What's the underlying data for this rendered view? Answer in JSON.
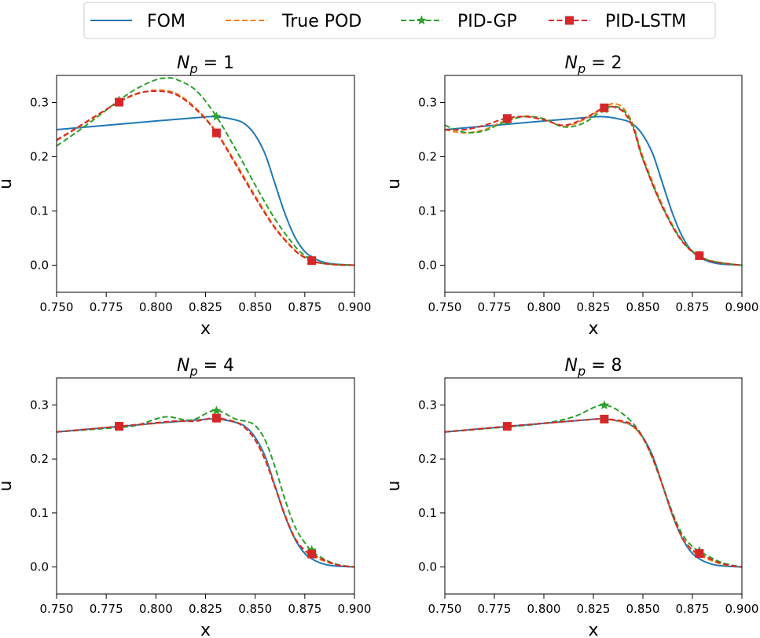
{
  "legend": {
    "placement": "top-center",
    "entries": [
      {
        "label": "FOM",
        "color": "#1f77b4",
        "style": "solid",
        "marker": ""
      },
      {
        "label": "True POD",
        "color": "#ff7f0e",
        "style": "dashed",
        "marker": ""
      },
      {
        "label": "PID-GP",
        "color": "#2ca02c",
        "style": "dashed",
        "marker": "star"
      },
      {
        "label": "PID-LSTM",
        "color": "#d62728",
        "style": "dashed",
        "marker": "square"
      }
    ]
  },
  "chart_data": [
    {
      "type": "line",
      "title_var": "N",
      "title_sub": "p",
      "title_rest": " = 1",
      "xlabel": "x",
      "ylabel": "u",
      "xlim": [
        0.75,
        0.9
      ],
      "ylim": [
        -0.05,
        0.35
      ],
      "xticks": [
        "0.750",
        "0.775",
        "0.800",
        "0.825",
        "0.850",
        "0.875",
        "0.900"
      ],
      "yticks": [
        "0.0",
        "0.1",
        "0.2",
        "0.3"
      ],
      "markers_x": [
        0.7815,
        0.8305,
        0.8785
      ],
      "series": [
        {
          "name": "FOM",
          "color": "#1f77b4",
          "x": [
            0.75,
            0.775,
            0.8,
            0.82,
            0.83,
            0.84,
            0.845,
            0.85,
            0.855,
            0.86,
            0.865,
            0.87,
            0.875,
            0.88,
            0.885,
            0.89,
            0.9
          ],
          "y": [
            0.25,
            0.258,
            0.266,
            0.272,
            0.274,
            0.268,
            0.26,
            0.24,
            0.205,
            0.15,
            0.095,
            0.052,
            0.025,
            0.012,
            0.005,
            0.002,
            0.0
          ]
        },
        {
          "name": "True POD",
          "color": "#ff7f0e",
          "x": [
            0.75,
            0.76,
            0.77,
            0.78,
            0.79,
            0.8,
            0.81,
            0.82,
            0.83,
            0.84,
            0.85,
            0.86,
            0.87,
            0.875,
            0.88,
            0.89,
            0.9
          ],
          "y": [
            0.23,
            0.252,
            0.275,
            0.298,
            0.315,
            0.323,
            0.317,
            0.29,
            0.248,
            0.19,
            0.128,
            0.07,
            0.028,
            0.015,
            0.006,
            0.001,
            0.0
          ]
        },
        {
          "name": "PID-GP",
          "color": "#2ca02c",
          "x": [
            0.75,
            0.76,
            0.77,
            0.78,
            0.79,
            0.8,
            0.805,
            0.81,
            0.82,
            0.83,
            0.84,
            0.85,
            0.86,
            0.87,
            0.875,
            0.88,
            0.89,
            0.9
          ],
          "y": [
            0.22,
            0.245,
            0.272,
            0.3,
            0.325,
            0.342,
            0.345,
            0.343,
            0.323,
            0.277,
            0.215,
            0.148,
            0.085,
            0.035,
            0.018,
            0.006,
            0.001,
            0.0
          ]
        },
        {
          "name": "PID-LSTM",
          "color": "#d62728",
          "x": [
            0.75,
            0.76,
            0.77,
            0.78,
            0.79,
            0.8,
            0.81,
            0.82,
            0.83,
            0.84,
            0.85,
            0.86,
            0.87,
            0.875,
            0.88,
            0.89,
            0.9
          ],
          "y": [
            0.231,
            0.253,
            0.276,
            0.298,
            0.316,
            0.321,
            0.315,
            0.288,
            0.247,
            0.187,
            0.125,
            0.068,
            0.027,
            0.014,
            0.006,
            0.001,
            0.0
          ]
        }
      ]
    },
    {
      "type": "line",
      "title_var": "N",
      "title_sub": "p",
      "title_rest": " = 2",
      "xlabel": "x",
      "ylabel": "u",
      "xlim": [
        0.75,
        0.9
      ],
      "ylim": [
        -0.05,
        0.35
      ],
      "xticks": [
        "0.750",
        "0.775",
        "0.800",
        "0.825",
        "0.850",
        "0.875",
        "0.900"
      ],
      "yticks": [
        "0.0",
        "0.1",
        "0.2",
        "0.3"
      ],
      "markers_x": [
        0.7815,
        0.8305,
        0.8785
      ],
      "series": [
        {
          "name": "FOM",
          "color": "#1f77b4",
          "x": [
            0.75,
            0.775,
            0.8,
            0.82,
            0.83,
            0.84,
            0.845,
            0.85,
            0.855,
            0.86,
            0.865,
            0.87,
            0.875,
            0.88,
            0.885,
            0.89,
            0.9
          ],
          "y": [
            0.25,
            0.258,
            0.266,
            0.272,
            0.274,
            0.268,
            0.26,
            0.24,
            0.205,
            0.15,
            0.095,
            0.052,
            0.025,
            0.012,
            0.005,
            0.002,
            0.0
          ]
        },
        {
          "name": "True POD",
          "color": "#ff7f0e",
          "x": [
            0.75,
            0.76,
            0.77,
            0.78,
            0.79,
            0.8,
            0.81,
            0.82,
            0.83,
            0.835,
            0.84,
            0.845,
            0.85,
            0.86,
            0.87,
            0.88,
            0.89,
            0.9
          ],
          "y": [
            0.25,
            0.244,
            0.25,
            0.266,
            0.275,
            0.27,
            0.256,
            0.268,
            0.29,
            0.298,
            0.29,
            0.26,
            0.2,
            0.11,
            0.045,
            0.014,
            0.004,
            0.0
          ]
        },
        {
          "name": "PID-GP",
          "color": "#2ca02c",
          "x": [
            0.75,
            0.76,
            0.77,
            0.78,
            0.79,
            0.8,
            0.81,
            0.82,
            0.83,
            0.835,
            0.84,
            0.845,
            0.85,
            0.86,
            0.87,
            0.88,
            0.89,
            0.9
          ],
          "y": [
            0.258,
            0.245,
            0.248,
            0.264,
            0.274,
            0.27,
            0.255,
            0.262,
            0.287,
            0.293,
            0.286,
            0.257,
            0.196,
            0.107,
            0.044,
            0.014,
            0.004,
            0.0
          ]
        },
        {
          "name": "PID-LSTM",
          "color": "#d62728",
          "x": [
            0.75,
            0.76,
            0.77,
            0.78,
            0.79,
            0.8,
            0.81,
            0.82,
            0.83,
            0.835,
            0.84,
            0.845,
            0.85,
            0.86,
            0.87,
            0.88,
            0.89,
            0.9
          ],
          "y": [
            0.25,
            0.25,
            0.258,
            0.27,
            0.274,
            0.268,
            0.258,
            0.27,
            0.29,
            0.292,
            0.283,
            0.254,
            0.195,
            0.106,
            0.043,
            0.013,
            0.004,
            0.0
          ]
        }
      ]
    },
    {
      "type": "line",
      "title_var": "N",
      "title_sub": "p",
      "title_rest": " = 4",
      "xlabel": "x",
      "ylabel": "u",
      "xlim": [
        0.75,
        0.9
      ],
      "ylim": [
        -0.05,
        0.35
      ],
      "xticks": [
        "0.750",
        "0.775",
        "0.800",
        "0.825",
        "0.850",
        "0.875",
        "0.900"
      ],
      "yticks": [
        "0.0",
        "0.1",
        "0.2",
        "0.3"
      ],
      "markers_x": [
        0.7815,
        0.8305,
        0.8785
      ],
      "series": [
        {
          "name": "FOM",
          "color": "#1f77b4",
          "x": [
            0.75,
            0.775,
            0.8,
            0.82,
            0.83,
            0.84,
            0.845,
            0.85,
            0.855,
            0.86,
            0.865,
            0.87,
            0.875,
            0.88,
            0.885,
            0.89,
            0.9
          ],
          "y": [
            0.25,
            0.258,
            0.266,
            0.272,
            0.274,
            0.268,
            0.26,
            0.24,
            0.205,
            0.15,
            0.095,
            0.052,
            0.025,
            0.012,
            0.005,
            0.002,
            0.0
          ]
        },
        {
          "name": "True POD",
          "color": "#ff7f0e",
          "x": [
            0.75,
            0.78,
            0.8,
            0.81,
            0.82,
            0.83,
            0.84,
            0.845,
            0.85,
            0.855,
            0.86,
            0.865,
            0.87,
            0.875,
            0.88,
            0.89,
            0.9
          ],
          "y": [
            0.25,
            0.259,
            0.266,
            0.27,
            0.271,
            0.275,
            0.269,
            0.258,
            0.236,
            0.2,
            0.15,
            0.097,
            0.054,
            0.03,
            0.018,
            0.005,
            0.0
          ]
        },
        {
          "name": "PID-GP",
          "color": "#2ca02c",
          "x": [
            0.75,
            0.78,
            0.79,
            0.8,
            0.805,
            0.81,
            0.815,
            0.82,
            0.83,
            0.84,
            0.845,
            0.85,
            0.855,
            0.86,
            0.865,
            0.87,
            0.875,
            0.88,
            0.89,
            0.9
          ],
          "y": [
            0.25,
            0.258,
            0.262,
            0.274,
            0.278,
            0.276,
            0.272,
            0.274,
            0.29,
            0.274,
            0.27,
            0.262,
            0.235,
            0.185,
            0.125,
            0.075,
            0.045,
            0.025,
            0.006,
            0.0
          ]
        },
        {
          "name": "PID-LSTM",
          "color": "#d62728",
          "x": [
            0.75,
            0.78,
            0.8,
            0.81,
            0.82,
            0.83,
            0.84,
            0.845,
            0.85,
            0.855,
            0.86,
            0.865,
            0.87,
            0.875,
            0.88,
            0.89,
            0.9
          ],
          "y": [
            0.25,
            0.26,
            0.267,
            0.27,
            0.27,
            0.276,
            0.268,
            0.257,
            0.235,
            0.198,
            0.148,
            0.095,
            0.053,
            0.031,
            0.021,
            0.005,
            0.0
          ]
        }
      ]
    },
    {
      "type": "line",
      "title_var": "N",
      "title_sub": "p",
      "title_rest": " = 8",
      "xlabel": "x",
      "ylabel": "u",
      "xlim": [
        0.75,
        0.9
      ],
      "ylim": [
        -0.05,
        0.35
      ],
      "xticks": [
        "0.750",
        "0.775",
        "0.800",
        "0.825",
        "0.850",
        "0.875",
        "0.900"
      ],
      "yticks": [
        "0.0",
        "0.1",
        "0.2",
        "0.3"
      ],
      "markers_x": [
        0.7815,
        0.8305,
        0.8785
      ],
      "series": [
        {
          "name": "FOM",
          "color": "#1f77b4",
          "x": [
            0.75,
            0.775,
            0.8,
            0.82,
            0.83,
            0.84,
            0.845,
            0.85,
            0.855,
            0.86,
            0.865,
            0.87,
            0.875,
            0.88,
            0.885,
            0.89,
            0.9
          ],
          "y": [
            0.25,
            0.258,
            0.266,
            0.272,
            0.274,
            0.268,
            0.26,
            0.24,
            0.205,
            0.15,
            0.095,
            0.052,
            0.025,
            0.012,
            0.005,
            0.002,
            0.0
          ]
        },
        {
          "name": "True POD",
          "color": "#ff7f0e",
          "x": [
            0.75,
            0.78,
            0.8,
            0.82,
            0.83,
            0.84,
            0.845,
            0.85,
            0.855,
            0.86,
            0.865,
            0.87,
            0.875,
            0.88,
            0.89,
            0.9
          ],
          "y": [
            0.25,
            0.259,
            0.266,
            0.272,
            0.274,
            0.268,
            0.26,
            0.238,
            0.2,
            0.15,
            0.096,
            0.053,
            0.03,
            0.019,
            0.005,
            0.0
          ]
        },
        {
          "name": "PID-GP",
          "color": "#2ca02c",
          "x": [
            0.75,
            0.78,
            0.8,
            0.815,
            0.825,
            0.83,
            0.835,
            0.84,
            0.845,
            0.85,
            0.855,
            0.86,
            0.865,
            0.87,
            0.875,
            0.88,
            0.89,
            0.9
          ],
          "y": [
            0.25,
            0.259,
            0.266,
            0.278,
            0.295,
            0.3,
            0.295,
            0.283,
            0.266,
            0.24,
            0.2,
            0.15,
            0.1,
            0.06,
            0.038,
            0.026,
            0.008,
            0.0
          ]
        },
        {
          "name": "PID-LSTM",
          "color": "#d62728",
          "x": [
            0.75,
            0.78,
            0.8,
            0.82,
            0.83,
            0.84,
            0.845,
            0.85,
            0.855,
            0.86,
            0.865,
            0.87,
            0.875,
            0.88,
            0.89,
            0.9
          ],
          "y": [
            0.25,
            0.26,
            0.266,
            0.272,
            0.274,
            0.27,
            0.262,
            0.24,
            0.202,
            0.151,
            0.097,
            0.054,
            0.032,
            0.022,
            0.006,
            0.0
          ]
        }
      ]
    }
  ]
}
